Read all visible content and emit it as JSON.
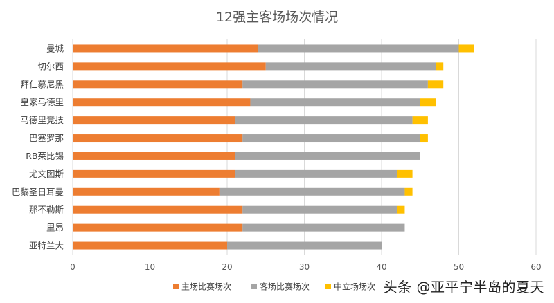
{
  "chart_data": {
    "type": "bar",
    "orientation": "horizontal",
    "stacked": true,
    "title": "12强主客场场次情况",
    "categories": [
      "曼城",
      "切尔西",
      "拜仁慕尼黑",
      "皇家马德里",
      "马德里竞技",
      "巴塞罗那",
      "RB莱比锡",
      "尤文图斯",
      "巴黎圣日耳曼",
      "那不勒斯",
      "里昂",
      "亚特兰大"
    ],
    "series": [
      {
        "name": "主场比赛场次",
        "color": "#ED7D31",
        "values": [
          24,
          25,
          22,
          23,
          21,
          22,
          21,
          21,
          19,
          22,
          22,
          20
        ]
      },
      {
        "name": "客场比赛场次",
        "color": "#A5A5A5",
        "values": [
          26,
          22,
          24,
          22,
          23,
          23,
          24,
          21,
          24,
          20,
          21,
          20
        ]
      },
      {
        "name": "中立场场次",
        "color": "#FFC000",
        "values": [
          2,
          1,
          2,
          2,
          2,
          1,
          0,
          2,
          1,
          1,
          0,
          0
        ]
      }
    ],
    "xlim": [
      0,
      60
    ],
    "xticks": [
      0,
      10,
      20,
      30,
      40,
      50,
      60
    ],
    "grid": true,
    "legend": "bottom"
  },
  "watermark": "头条 @亚平宁半岛的夏天"
}
